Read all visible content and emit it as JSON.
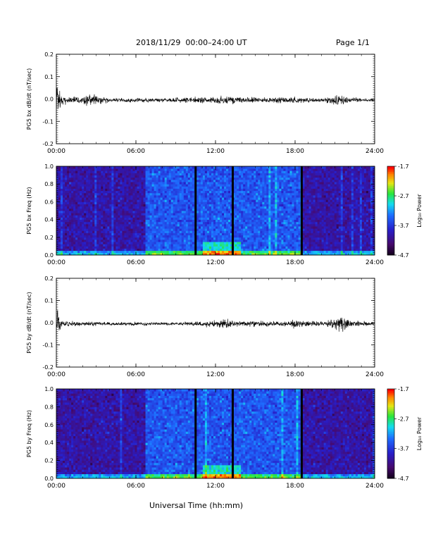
{
  "header": {
    "title": "2018/11/29  00:00–24:00 UT",
    "page": "Page 1/1"
  },
  "x_axis_title": "Universal Time (hh:mm)",
  "colors": {
    "trace": "#000000",
    "frame": "#000000",
    "spectrogram_low": "#3a0a5a",
    "spectrogram_mid": "#1f4fd0",
    "spectrogram_high": "#ff0000"
  },
  "chart_data": [
    {
      "type": "line",
      "ylabel": "PG5 bx dB/dt (nT/sec)",
      "xlim": [
        0,
        24
      ],
      "ylim": [
        -0.2,
        0.2
      ],
      "xticks": [
        "00:00",
        "06:00",
        "12:00",
        "18:00",
        "24:00"
      ],
      "yticks": [
        "-0.2",
        "-0.1",
        "0.0",
        "0.1",
        "0.2"
      ],
      "baseline": -0.005,
      "noise_envelope": [
        {
          "x": 0.0,
          "amp": 0.2
        },
        {
          "x": 0.15,
          "amp": 0.12
        },
        {
          "x": 0.5,
          "amp": 0.03
        },
        {
          "x": 2.0,
          "amp": 0.02
        },
        {
          "x": 2.2,
          "amp": 0.05
        },
        {
          "x": 4.0,
          "amp": 0.015
        },
        {
          "x": 8.0,
          "amp": 0.015
        },
        {
          "x": 11.0,
          "amp": 0.025
        },
        {
          "x": 13.0,
          "amp": 0.03
        },
        {
          "x": 15.0,
          "amp": 0.02
        },
        {
          "x": 17.0,
          "amp": 0.02
        },
        {
          "x": 18.0,
          "amp": 0.025
        },
        {
          "x": 20.0,
          "amp": 0.015
        },
        {
          "x": 21.5,
          "amp": 0.05
        },
        {
          "x": 22.0,
          "amp": 0.02
        },
        {
          "x": 24.0,
          "amp": 0.01
        }
      ]
    },
    {
      "type": "heatmap",
      "ylabel": "PG5 bx Freq (Hz)",
      "colorbar_label": "Log₁₀ Power",
      "colorbar_ticks": [
        "-1.7",
        "-2.7",
        "-3.7",
        "-4.7"
      ],
      "clim": [
        -4.7,
        -1.7
      ],
      "xlim": [
        0,
        24
      ],
      "ylim": [
        0.0,
        1.0
      ],
      "xticks": [
        "00:00",
        "06:00",
        "12:00",
        "18:00",
        "24:00"
      ],
      "yticks": [
        "0.0",
        "0.2",
        "0.4",
        "0.6",
        "0.8",
        "1.0"
      ],
      "data_gaps_hours": [
        10.5,
        13.3,
        18.5
      ],
      "bright_band_hours": [
        [
          6.8,
          10.5
        ],
        [
          10.5,
          13.3
        ],
        [
          13.3,
          18.5
        ]
      ]
    },
    {
      "type": "line",
      "ylabel": "PG5 by dB/dt (nT/sec)",
      "xlim": [
        0,
        24
      ],
      "ylim": [
        -0.2,
        0.2
      ],
      "xticks": [
        "00:00",
        "06:00",
        "12:00",
        "18:00",
        "24:00"
      ],
      "yticks": [
        "-0.2",
        "-0.1",
        "0.0",
        "0.1",
        "0.2"
      ],
      "baseline": -0.005,
      "noise_envelope": [
        {
          "x": 0.0,
          "amp": 0.2
        },
        {
          "x": 0.15,
          "amp": 0.08
        },
        {
          "x": 0.5,
          "amp": 0.02
        },
        {
          "x": 2.0,
          "amp": 0.015
        },
        {
          "x": 4.0,
          "amp": 0.015
        },
        {
          "x": 8.0,
          "amp": 0.01
        },
        {
          "x": 10.0,
          "amp": 0.015
        },
        {
          "x": 13.0,
          "amp": 0.035
        },
        {
          "x": 14.0,
          "amp": 0.02
        },
        {
          "x": 17.0,
          "amp": 0.02
        },
        {
          "x": 18.0,
          "amp": 0.03
        },
        {
          "x": 20.0,
          "amp": 0.015
        },
        {
          "x": 21.5,
          "amp": 0.06
        },
        {
          "x": 22.0,
          "amp": 0.03
        },
        {
          "x": 24.0,
          "amp": 0.01
        }
      ]
    },
    {
      "type": "heatmap",
      "ylabel": "PG5 by Freq (Hz)",
      "colorbar_label": "Log₁₀ Power",
      "colorbar_ticks": [
        "-1.7",
        "-2.7",
        "-3.7",
        "-4.7"
      ],
      "clim": [
        -4.7,
        -1.7
      ],
      "xlim": [
        0,
        24
      ],
      "ylim": [
        0.0,
        1.0
      ],
      "xticks": [
        "00:00",
        "06:00",
        "12:00",
        "18:00",
        "24:00"
      ],
      "yticks": [
        "0.0",
        "0.2",
        "0.4",
        "0.6",
        "0.8",
        "1.0"
      ],
      "data_gaps_hours": [
        10.5,
        13.3,
        18.5
      ],
      "bright_band_hours": [
        [
          6.8,
          10.5
        ],
        [
          10.5,
          13.3
        ],
        [
          13.3,
          18.5
        ]
      ]
    }
  ]
}
